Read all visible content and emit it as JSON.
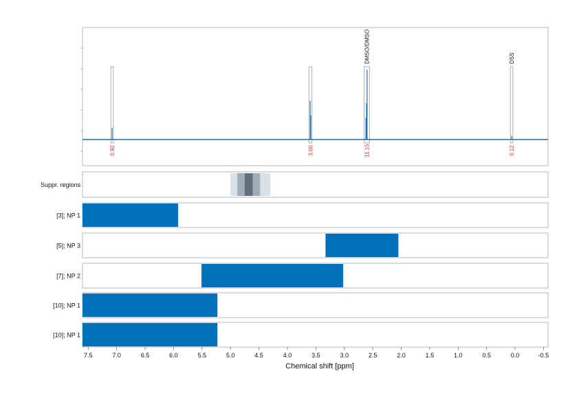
{
  "chart_data": {
    "type": "nmr-spectrum-with-range-panels",
    "xlabel": "Chemical shift [ppm]",
    "x_axis": {
      "reversed": true,
      "xlim": [
        7.6,
        -0.58
      ],
      "ticks": [
        7.5,
        7.0,
        6.5,
        6.0,
        5.5,
        5.0,
        4.5,
        4.0,
        3.5,
        3.0,
        2.5,
        2.0,
        1.5,
        1.0,
        0.5,
        0.0,
        -0.5
      ],
      "tick_labels": [
        "7.5",
        "7.0",
        "6.5",
        "6.0",
        "5.5",
        "5.0",
        "4.5",
        "4.0",
        "3.5",
        "3.0",
        "2.5",
        "2.0",
        "1.5",
        "1.0",
        "0.5",
        "0.0",
        "-0.5"
      ],
      "grid": "dotted vertical"
    },
    "spectrum": {
      "color": "#1f6fb4",
      "baseline_rel": 0.0,
      "peaks": [
        {
          "ppm": 7.08,
          "rel_height": 0.16
        },
        {
          "ppm": 3.6,
          "rel_height": 0.53
        },
        {
          "ppm": 3.59,
          "rel_height": 0.33
        },
        {
          "ppm": 2.6,
          "rel_height": 0.96
        },
        {
          "ppm": 2.61,
          "rel_height": 0.5
        },
        {
          "ppm": 2.62,
          "rel_height": 0.3
        },
        {
          "ppm": 0.06,
          "rel_height": 0.05
        }
      ],
      "integration_boxes": [
        {
          "from": 7.09,
          "to": 7.07,
          "label": "0.92",
          "label_color": "#e8322a"
        },
        {
          "from": 3.61,
          "to": 3.58,
          "label": "3.00",
          "label_color": "#e8322a"
        },
        {
          "from": 2.64,
          "to": 2.57,
          "label": "11.15",
          "label_color": "#e8322a",
          "annotation": "DMSO/DMSO"
        },
        {
          "from": 0.07,
          "to": 0.05,
          "label": "0.12",
          "label_color": "#e8322a",
          "annotation": "DSS"
        }
      ]
    },
    "suppressed_regions": {
      "label": "Suppr. regions",
      "bands": [
        {
          "from": 5.0,
          "to": 4.3,
          "color": "#d8dfe6"
        },
        {
          "from": 4.88,
          "to": 4.48,
          "color": "#9fadb8"
        },
        {
          "from": 4.75,
          "to": 4.61,
          "color": "#5f7079"
        }
      ]
    },
    "range_panels": {
      "bar_color": "#0070bb",
      "rows": [
        {
          "label": "[3]; NP 1",
          "from": 7.6,
          "to": 5.92
        },
        {
          "label": "[5]; NP 3",
          "from": 3.33,
          "to": 2.05
        },
        {
          "label": "[7]; NP 2",
          "from": 5.51,
          "to": 3.02
        },
        {
          "label": "[10]; NP 1",
          "from": 7.6,
          "to": 5.23
        },
        {
          "label": "[10]; NP 1",
          "from": 7.6,
          "to": 5.23
        }
      ]
    }
  }
}
